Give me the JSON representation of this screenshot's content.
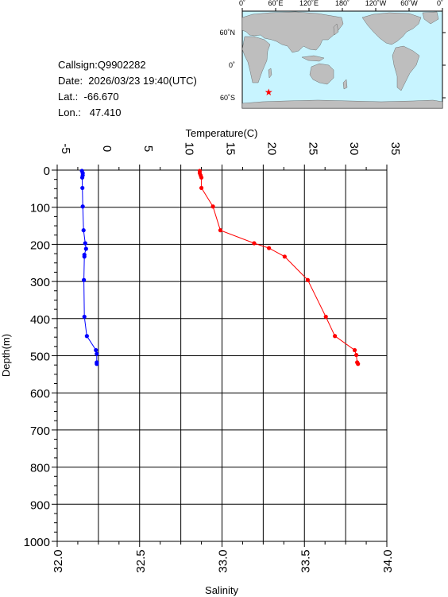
{
  "station": {
    "callsign": "Callsign:Q9902282",
    "date": "Date:  2026/03/23 19:40(UTC)",
    "lat": "Lat.:  -66.670",
    "lon": "Lon.:   47.410"
  },
  "map": {
    "lon_labels": [
      "0˚",
      "60˚E",
      "120˚E",
      "180˚",
      "120˚W",
      "60˚W",
      "0˚"
    ],
    "lat_labels": [
      "60˚N",
      "0˚",
      "60˚S"
    ],
    "ocean_color": "#c8f4ff",
    "land_color": "#bebebe",
    "marker_color": "#ff0000",
    "marker_lon": 47.41,
    "marker_lat": -66.67
  },
  "chart_data": {
    "type": "line",
    "ylabel": "Depth(m)",
    "ylim": [
      0,
      1000
    ],
    "y_inverted": true,
    "yticks": [
      0,
      100,
      200,
      300,
      400,
      500,
      600,
      700,
      800,
      900,
      1000
    ],
    "top_axis": {
      "label": "Temperature(C)",
      "range": [
        -5,
        35
      ],
      "ticks": [
        -5,
        0,
        5,
        10,
        15,
        20,
        25,
        30,
        35
      ]
    },
    "bottom_axis": {
      "label": "Salinity",
      "range": [
        32.0,
        34.0
      ],
      "ticks": [
        "32.0",
        "32.5",
        "33.0",
        "33.5",
        "34.0"
      ]
    },
    "grid": true,
    "series": [
      {
        "axis": "top",
        "color": "#ff0000",
        "points": [
          [
            12.3,
            2
          ],
          [
            12.3,
            8
          ],
          [
            12.4,
            14
          ],
          [
            12.5,
            20
          ],
          [
            12.5,
            48
          ],
          [
            13.9,
            98
          ],
          [
            14.8,
            162
          ],
          [
            18.9,
            197
          ],
          [
            20.7,
            210
          ],
          [
            22.6,
            233
          ],
          [
            25.4,
            296
          ],
          [
            27.6,
            395
          ],
          [
            28.7,
            447
          ],
          [
            31.1,
            485
          ],
          [
            31.3,
            498
          ],
          [
            31.4,
            518
          ],
          [
            31.5,
            522
          ]
        ]
      },
      {
        "axis": "bottom",
        "color": "#0000ff",
        "points": [
          [
            32.15,
            2
          ],
          [
            32.155,
            8
          ],
          [
            32.155,
            14
          ],
          [
            32.152,
            20
          ],
          [
            32.153,
            48
          ],
          [
            32.155,
            98
          ],
          [
            32.16,
            162
          ],
          [
            32.17,
            197
          ],
          [
            32.175,
            212
          ],
          [
            32.165,
            228
          ],
          [
            32.165,
            233
          ],
          [
            32.162,
            296
          ],
          [
            32.165,
            395
          ],
          [
            32.18,
            447
          ],
          [
            32.235,
            485
          ],
          [
            32.24,
            495
          ],
          [
            32.24,
            518
          ],
          [
            32.24,
            522
          ]
        ]
      }
    ]
  }
}
